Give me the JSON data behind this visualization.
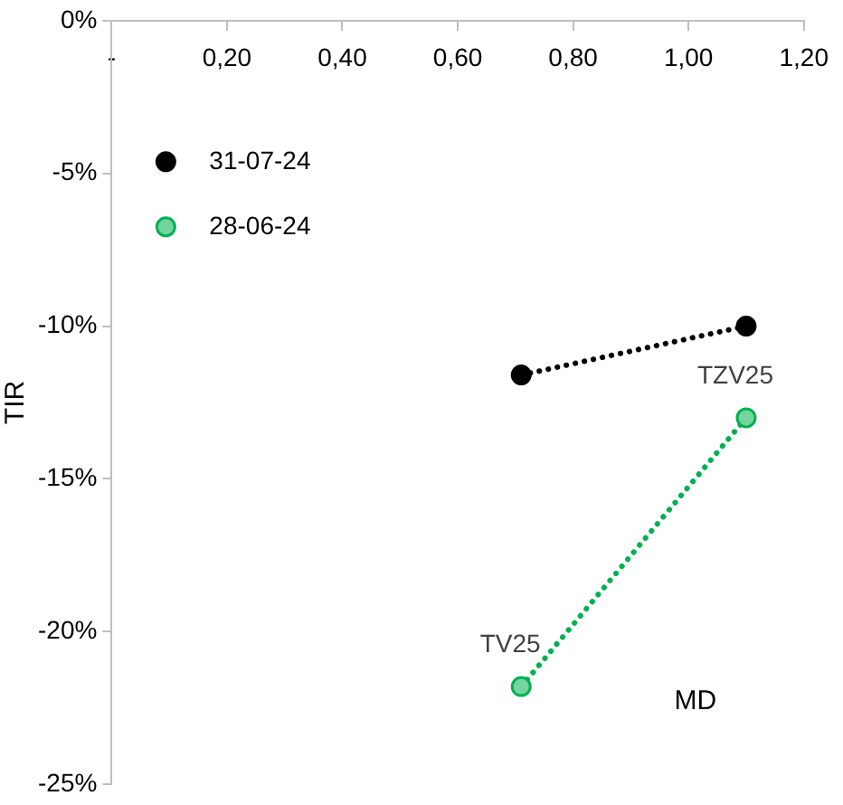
{
  "chart_data": {
    "type": "line",
    "xlabel": "MD",
    "ylabel": "TIR",
    "series": [
      {
        "name": "31-07-24",
        "color": "#000000",
        "values": [
          -11.6,
          -10.0
        ]
      },
      {
        "name": "28-06-24",
        "color": "#00b050",
        "values": [
          -21.8,
          -13.0
        ]
      }
    ],
    "x": [
      0.71,
      1.1
    ],
    "xlim": [
      0,
      1.2
    ],
    "xticks": [
      {
        "value": 0,
        "label": "-"
      },
      {
        "value": 0.2,
        "label": "0,20"
      },
      {
        "value": 0.4,
        "label": "0,40"
      },
      {
        "value": 0.6,
        "label": "0,60"
      },
      {
        "value": 0.8,
        "label": "0,80"
      },
      {
        "value": 1.0,
        "label": "1,00"
      },
      {
        "value": 1.2,
        "label": "1,20"
      }
    ],
    "ylim": [
      -25,
      0
    ],
    "yticks": [
      {
        "value": 0,
        "label": "0%"
      },
      {
        "value": -5,
        "label": "-5%"
      },
      {
        "value": -10,
        "label": "-10%"
      },
      {
        "value": -15,
        "label": "-15%"
      },
      {
        "value": -20,
        "label": "-20%"
      },
      {
        "value": -25,
        "label": "-25%"
      }
    ],
    "annotations": [
      {
        "text": "TV25",
        "x": 0.71,
        "y": -21.8
      },
      {
        "text": "TZV25",
        "x": 1.1,
        "y": -13.0
      }
    ],
    "grid": false,
    "legend": "top left",
    "marker": "circle",
    "line_style": "dotted"
  }
}
